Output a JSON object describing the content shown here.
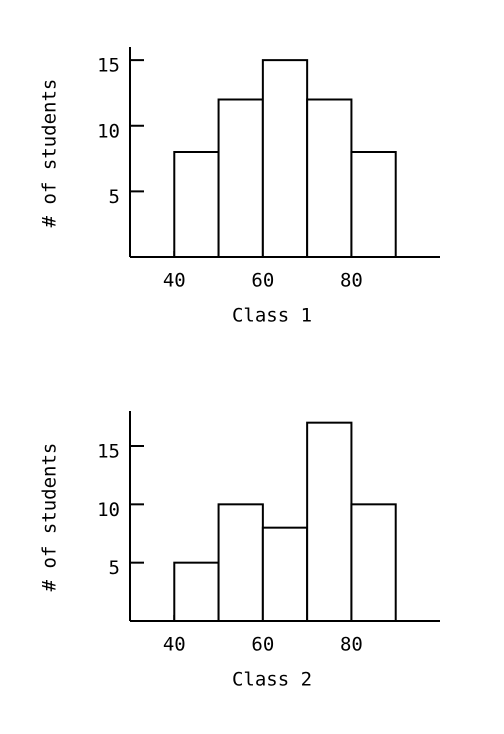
{
  "chart_data": [
    {
      "type": "histogram",
      "xlabel": "Class 1",
      "ylabel": "# of students",
      "bins": [
        40,
        50,
        60,
        70,
        80,
        90
      ],
      "values": [
        8,
        12,
        15,
        12,
        8
      ],
      "xlim": [
        30,
        100
      ],
      "xticks": [
        40,
        60,
        80
      ],
      "ylim": [
        0,
        16
      ],
      "yticks": [
        5,
        10,
        15
      ],
      "color": "#ffffff"
    },
    {
      "type": "histogram",
      "xlabel": "Class 2",
      "ylabel": "# of students",
      "bins": [
        40,
        50,
        60,
        70,
        80,
        90
      ],
      "values": [
        5,
        10,
        8,
        17,
        10
      ],
      "xlim": [
        30,
        100
      ],
      "xticks": [
        40,
        60,
        80
      ],
      "ylim": [
        0,
        18
      ],
      "yticks": [
        5,
        10,
        15
      ],
      "color": "#ffffff"
    }
  ]
}
